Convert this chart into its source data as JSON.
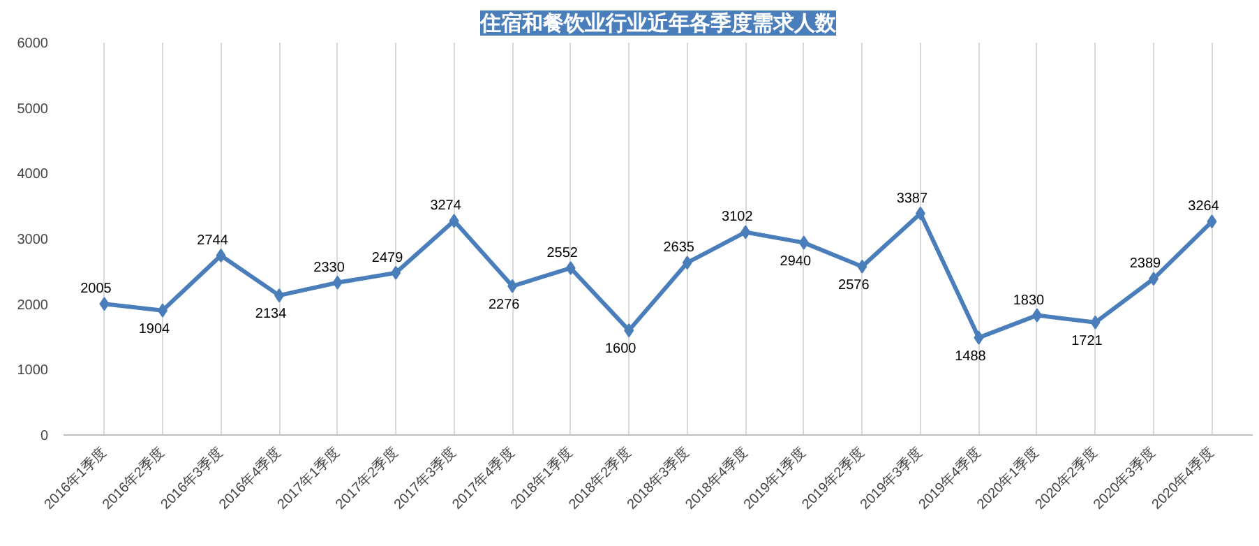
{
  "chart_data": {
    "type": "line",
    "title": "住宿和餐饮业行业近年各季度需求人数",
    "categories": [
      "2016年1季度",
      "2016年2季度",
      "2016年3季度",
      "2016年4季度",
      "2017年1季度",
      "2017年2季度",
      "2017年3季度",
      "2017年4季度",
      "2018年1季度",
      "2018年2季度",
      "2018年3季度",
      "2018年4季度",
      "2019年1季度",
      "2019年2季度",
      "2019年3季度",
      "2019年4季度",
      "2020年1季度",
      "2020年2季度",
      "2020年3季度",
      "2020年4季度"
    ],
    "series": [
      {
        "color": "#4a7ebb",
        "values": [
          2005,
          1904,
          2744,
          2134,
          2330,
          2479,
          3274,
          2276,
          2552,
          1600,
          2635,
          3102,
          2940,
          2576,
          3387,
          1488,
          1830,
          1721,
          2389,
          3264
        ]
      }
    ],
    "ylim": [
      0,
      6000
    ],
    "yticks": [
      0,
      1000,
      2000,
      3000,
      4000,
      5000,
      6000
    ],
    "grid": "x",
    "marker": "diamond",
    "line_style": "solid",
    "data_labels": true
  }
}
